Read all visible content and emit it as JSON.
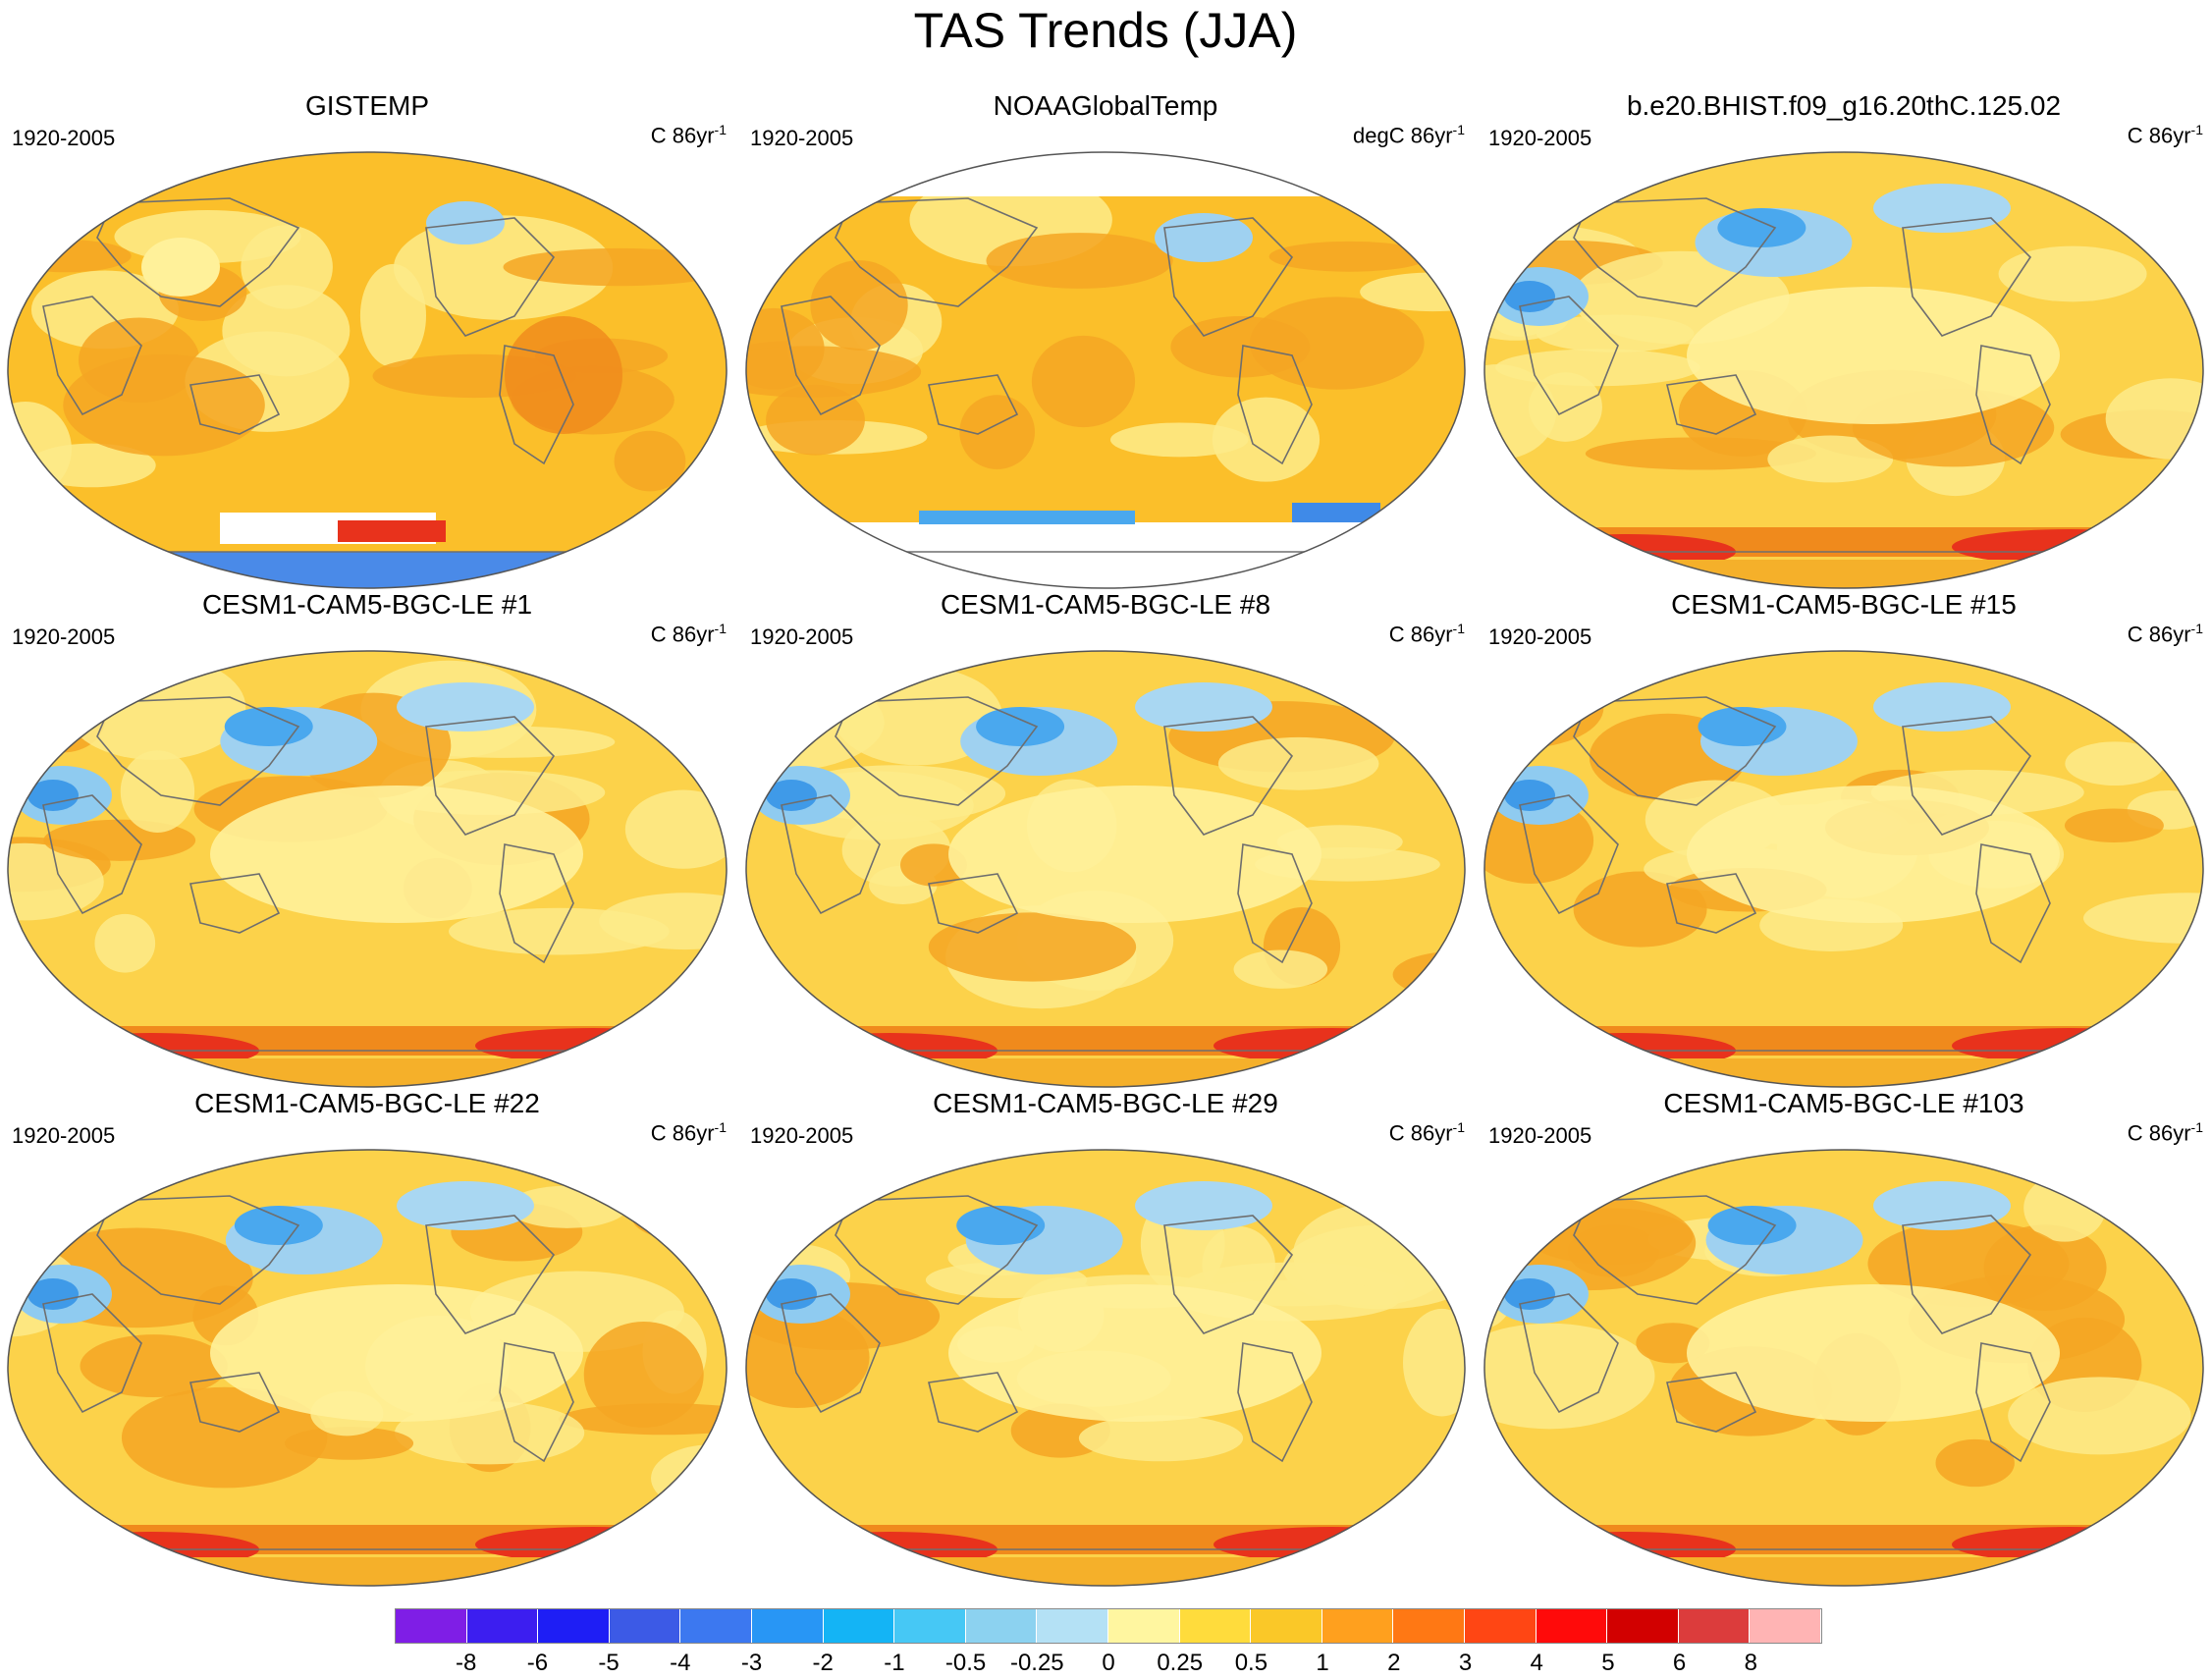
{
  "title": "TAS Trends (JJA)",
  "panels": [
    {
      "title": "GISTEMP",
      "period": "1920-2005",
      "units": "C 86yr",
      "exp": "-1",
      "style": "obs"
    },
    {
      "title": "NOAAGlobalTemp",
      "period": "1920-2005",
      "units": "degC 86yr",
      "exp": "-1",
      "style": "noaa"
    },
    {
      "title": "b.e20.BHIST.f09_g16.20thC.125.02",
      "period": "1920-2005",
      "units": "C 86yr",
      "exp": "-1",
      "style": "model"
    },
    {
      "title": "CESM1-CAM5-BGC-LE #1",
      "period": "1920-2005",
      "units": "C 86yr",
      "exp": "-1",
      "style": "model"
    },
    {
      "title": "CESM1-CAM5-BGC-LE #8",
      "period": "1920-2005",
      "units": "C 86yr",
      "exp": "-1",
      "style": "model"
    },
    {
      "title": "CESM1-CAM5-BGC-LE #15",
      "period": "1920-2005",
      "units": "C 86yr",
      "exp": "-1",
      "style": "model"
    },
    {
      "title": "CESM1-CAM5-BGC-LE #22",
      "period": "1920-2005",
      "units": "C 86yr",
      "exp": "-1",
      "style": "model"
    },
    {
      "title": "CESM1-CAM5-BGC-LE #29",
      "period": "1920-2005",
      "units": "C 86yr",
      "exp": "-1",
      "style": "model"
    },
    {
      "title": "CESM1-CAM5-BGC-LE #103",
      "period": "1920-2005",
      "units": "C 86yr",
      "exp": "-1",
      "style": "model"
    }
  ],
  "colorbar": {
    "labels": [
      "-8",
      "-6",
      "-5",
      "-4",
      "-3",
      "-2",
      "-1",
      "-0.5",
      "-0.25",
      "0",
      "0.25",
      "0.5",
      "1",
      "2",
      "3",
      "4",
      "5",
      "6",
      "8"
    ],
    "colors": [
      "#7f1ee6",
      "#3c1ef0",
      "#1e1ef5",
      "#3c5ae6",
      "#3c78f0",
      "#2896f5",
      "#14b4f5",
      "#46c8f5",
      "#8cd2f0",
      "#b4e1f5",
      "#fff6a0",
      "#ffdc3c",
      "#fac828",
      "#ffa01e",
      "#ff7814",
      "#ff4614",
      "#ff0a0a",
      "#d20000",
      "#dc3c3c",
      "#ffb4b4"
    ]
  }
}
